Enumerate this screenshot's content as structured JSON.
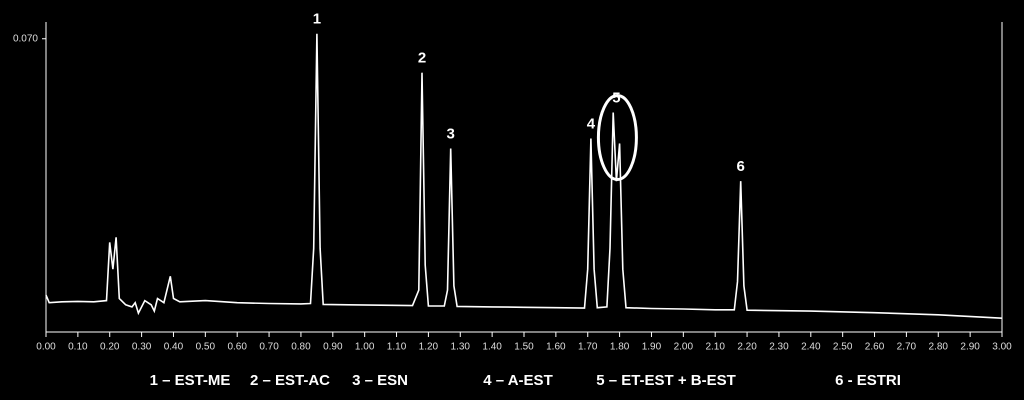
{
  "chart_data": {
    "type": "line",
    "x": [
      0.0,
      0.01,
      0.05,
      0.1,
      0.15,
      0.19,
      0.2,
      0.21,
      0.22,
      0.23,
      0.25,
      0.27,
      0.28,
      0.29,
      0.31,
      0.33,
      0.34,
      0.35,
      0.37,
      0.39,
      0.4,
      0.42,
      0.5,
      0.6,
      0.7,
      0.8,
      0.83,
      0.84,
      0.85,
      0.86,
      0.87,
      0.95,
      1.05,
      1.15,
      1.17,
      1.18,
      1.19,
      1.2,
      1.25,
      1.26,
      1.27,
      1.28,
      1.29,
      1.4,
      1.5,
      1.6,
      1.69,
      1.7,
      1.71,
      1.72,
      1.73,
      1.76,
      1.77,
      1.78,
      1.79,
      1.8,
      1.81,
      1.82,
      1.9,
      2.0,
      2.1,
      2.16,
      2.17,
      2.18,
      2.19,
      2.2,
      2.4,
      2.6,
      2.8,
      3.0
    ],
    "series": [
      {
        "color": "#ffffff",
        "values": [
          0.0088,
          0.007,
          0.0072,
          0.0073,
          0.0072,
          0.0075,
          0.0214,
          0.015,
          0.0226,
          0.008,
          0.0065,
          0.006,
          0.007,
          0.0045,
          0.0075,
          0.0065,
          0.005,
          0.008,
          0.007,
          0.0133,
          0.008,
          0.0072,
          0.0075,
          0.007,
          0.0068,
          0.0067,
          0.0068,
          0.02,
          0.0712,
          0.02,
          0.0066,
          0.0065,
          0.0064,
          0.0063,
          0.01,
          0.0619,
          0.016,
          0.0062,
          0.0062,
          0.01,
          0.0438,
          0.011,
          0.0061,
          0.006,
          0.0059,
          0.0058,
          0.0057,
          0.015,
          0.0462,
          0.015,
          0.0058,
          0.006,
          0.02,
          0.0524,
          0.036,
          0.045,
          0.015,
          0.0058,
          0.0056,
          0.0055,
          0.0053,
          0.0053,
          0.012,
          0.036,
          0.011,
          0.0052,
          0.005,
          0.0046,
          0.0041,
          0.0033
        ]
      }
    ],
    "xlim": [
      0,
      3
    ],
    "ylim": [
      0,
      0.074
    ],
    "xticks": [
      {
        "value": 0,
        "label": "0.00"
      },
      {
        "value": 0.1,
        "label": "0.10"
      },
      {
        "value": 0.2,
        "label": "0.20"
      },
      {
        "value": 0.3,
        "label": "0.30"
      },
      {
        "value": 0.4,
        "label": "0.40"
      },
      {
        "value": 0.5,
        "label": "0.50"
      },
      {
        "value": 0.6,
        "label": "0.60"
      },
      {
        "value": 0.7,
        "label": "0.70"
      },
      {
        "value": 0.8,
        "label": "0.80"
      },
      {
        "value": 0.9,
        "label": "0.90"
      },
      {
        "value": 1,
        "label": "1.00"
      },
      {
        "value": 1.1,
        "label": "1.10"
      },
      {
        "value": 1.2,
        "label": "1.20"
      },
      {
        "value": 1.3,
        "label": "1.30"
      },
      {
        "value": 1.4,
        "label": "1.40"
      },
      {
        "value": 1.5,
        "label": "1.50"
      },
      {
        "value": 1.6,
        "label": "1.60"
      },
      {
        "value": 1.7,
        "label": "1.70"
      },
      {
        "value": 1.8,
        "label": "1.80"
      },
      {
        "value": 1.9,
        "label": "1.90"
      },
      {
        "value": 2,
        "label": "2.00"
      },
      {
        "value": 2.1,
        "label": "2.10"
      },
      {
        "value": 2.2,
        "label": "2.20"
      },
      {
        "value": 2.3,
        "label": "2.30"
      },
      {
        "value": 2.4,
        "label": "2.40"
      },
      {
        "value": 2.5,
        "label": "2.50"
      },
      {
        "value": 2.6,
        "label": "2.60"
      },
      {
        "value": 2.7,
        "label": "2.70"
      },
      {
        "value": 2.8,
        "label": "2.80"
      },
      {
        "value": 2.9,
        "label": "2.90"
      },
      {
        "value": 3,
        "label": "3.00"
      }
    ],
    "yticks": [
      {
        "value": 0.07,
        "label": "0.070"
      }
    ],
    "annotations": [
      {
        "text": "1",
        "x": 0.85,
        "y": 0.0712
      },
      {
        "text": "2",
        "x": 1.18,
        "y": 0.0619
      },
      {
        "text": "3",
        "x": 1.27,
        "y": 0.0438
      },
      {
        "text": "4",
        "x": 1.71,
        "y": 0.0462
      },
      {
        "text": "5",
        "x": 1.79,
        "y": 0.0524
      },
      {
        "text": "6",
        "x": 2.18,
        "y": 0.036
      }
    ],
    "legend_labels": [
      "1 – EST-ME",
      "2 – EST-AC",
      "3 – ESN",
      "4 – A-EST",
      "5 – ET-EST + B-EST",
      "6 - ESTRI"
    ]
  }
}
